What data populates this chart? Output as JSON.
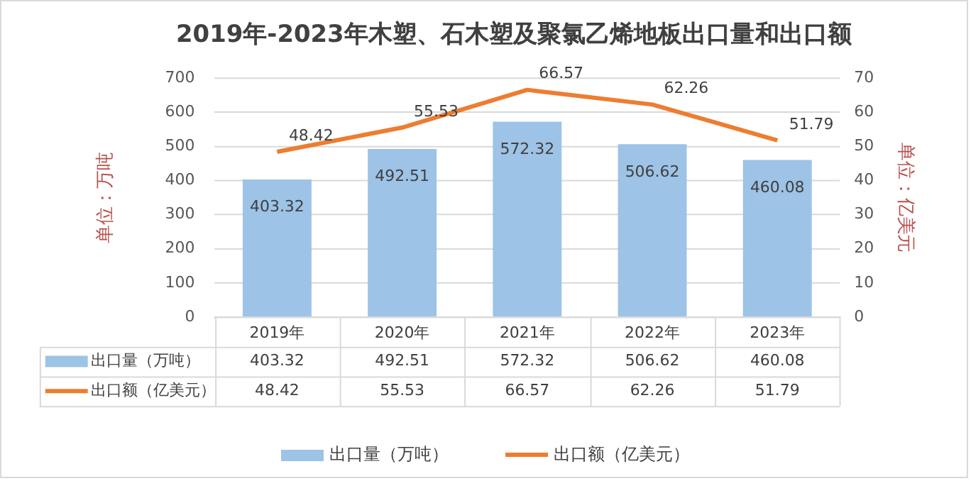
{
  "chart_data": {
    "type": "bar",
    "title": "2019年-2023年木塑、石木塑及聚氯乙烯地板出口量和出口额",
    "ylabel": "单位：万吨",
    "y2label": "单位：亿美元",
    "categories": [
      "2019年",
      "2020年",
      "2021年",
      "2022年",
      "2023年"
    ],
    "series": [
      {
        "name": "出口量（万吨）",
        "color": "#9dc3e6",
        "values": [
          403.32,
          492.51,
          572.32,
          506.62,
          460.08
        ],
        "value_labels": [
          "403.32",
          "492.51",
          "572.32",
          "506.62",
          "460.08"
        ]
      },
      {
        "name": "出口额（亿美元）",
        "type": "line",
        "axis": "y2",
        "color": "#ed7d31",
        "values": [
          48.42,
          55.53,
          66.57,
          62.26,
          51.79
        ],
        "value_labels": [
          "48.42",
          "55.53",
          "66.57",
          "62.26",
          "51.79"
        ]
      }
    ],
    "ylim": [
      0,
      700
    ],
    "yticks": [
      0,
      100,
      200,
      300,
      400,
      500,
      600,
      700
    ],
    "y2lim": [
      0,
      70
    ],
    "y2ticks": [
      0,
      10,
      20,
      30,
      40,
      50,
      60,
      70
    ],
    "annotations": [
      "403.32",
      "492.51",
      "572.32",
      "506.62",
      "460.08",
      "48.42",
      "55.53",
      "66.57",
      "62.26",
      "51.79"
    ],
    "grid": "y",
    "legend": "bottom",
    "data_labels": true,
    "marker": "none"
  }
}
